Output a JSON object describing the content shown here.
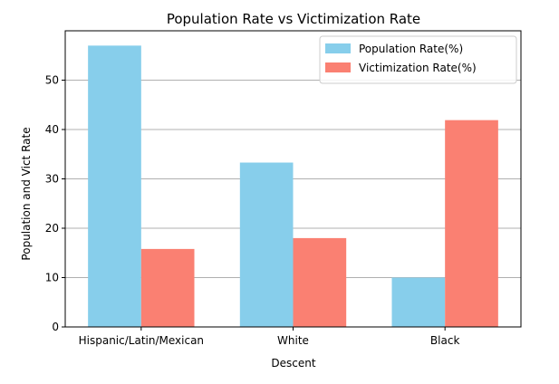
{
  "chart_data": {
    "type": "bar",
    "title": "Population Rate vs Victimization Rate",
    "xlabel": "Descent",
    "ylabel": "Population and Vict Rate",
    "categories": [
      "Hispanic/Latin/Mexican",
      "White",
      "Black"
    ],
    "series": [
      {
        "name": "Population Rate(%)",
        "values": [
          57,
          33.3,
          10
        ],
        "color": "#87ceeb"
      },
      {
        "name": "Victimization Rate(%)",
        "values": [
          15.8,
          18,
          41.9
        ],
        "color": "#fa8072"
      }
    ],
    "ylim": [
      0,
      60
    ],
    "yticks": [
      0,
      10,
      20,
      30,
      40,
      50
    ],
    "grid": "y-axis",
    "legend_position": "top-right"
  }
}
